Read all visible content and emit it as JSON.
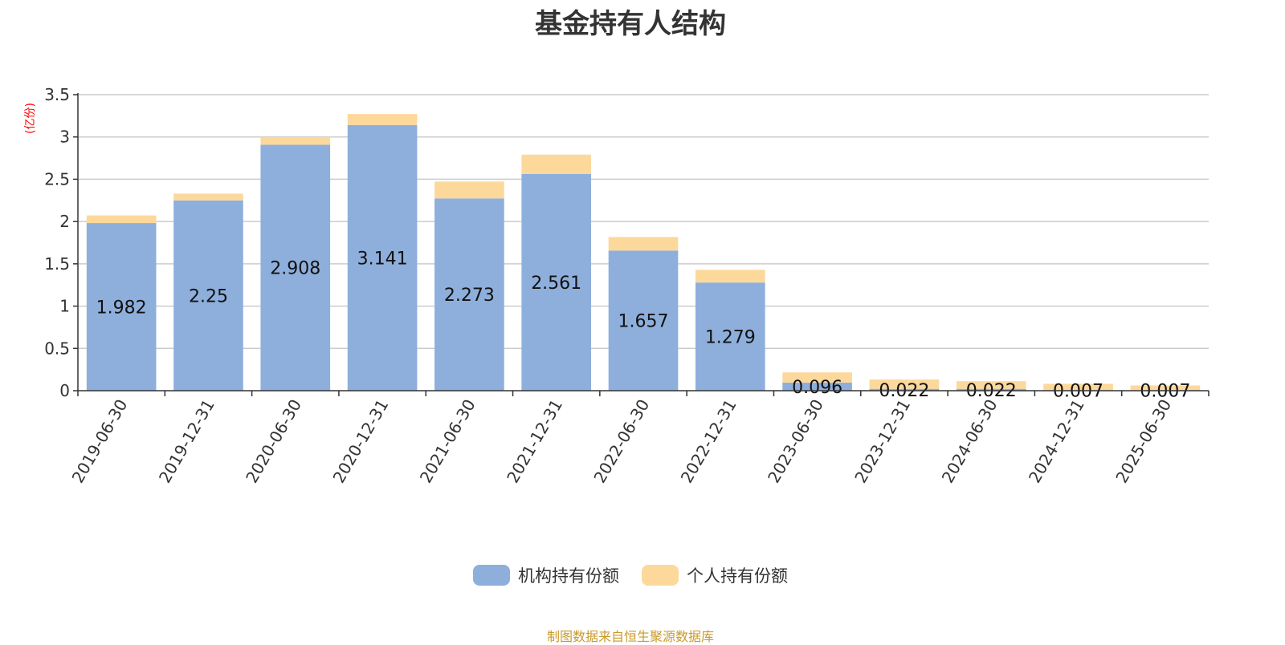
{
  "chart_data": {
    "type": "bar",
    "stacked": true,
    "title": "基金持有人结构",
    "ylabel": "(亿份)",
    "ylim": [
      0,
      3.5
    ],
    "yticks": [
      "0",
      "0.5",
      "1",
      "1.5",
      "2",
      "2.5",
      "3",
      "3.5"
    ],
    "grid": true,
    "legend_position": "bottom",
    "categories": [
      "2019-06-30",
      "2019-12-31",
      "2020-06-30",
      "2020-12-31",
      "2021-06-30",
      "2021-12-31",
      "2022-06-30",
      "2022-12-31",
      "2023-06-30",
      "2023-12-31",
      "2024-06-30",
      "2024-12-31",
      "2025-06-30"
    ],
    "series": [
      {
        "name": "机构持有份额",
        "color": "#8eafdc",
        "values": [
          1.982,
          2.25,
          2.908,
          3.141,
          2.273,
          2.561,
          1.657,
          1.279,
          0.096,
          0.022,
          0.022,
          0.007,
          0.007
        ],
        "labels": [
          "1.982",
          "2.25",
          "2.908",
          "3.141",
          "2.273",
          "2.561",
          "1.657",
          "1.279",
          "0.096",
          "0.022",
          "0.022",
          "0.007",
          "0.007"
        ]
      },
      {
        "name": "个人持有份额",
        "color": "#fdd89b",
        "values": [
          0.09,
          0.08,
          0.09,
          0.13,
          0.2,
          0.23,
          0.16,
          0.15,
          0.12,
          0.11,
          0.09,
          0.075,
          0.055
        ]
      }
    ]
  },
  "source_note": "制图数据来自恒生聚源数据库"
}
